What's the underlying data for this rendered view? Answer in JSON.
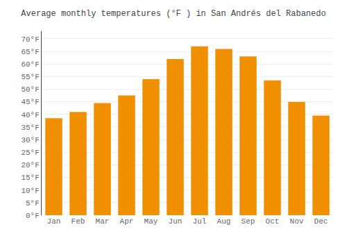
{
  "chart_data": {
    "type": "bar",
    "title": "Average monthly temperatures (°F ) in San Andrés del Rabanedo",
    "categories": [
      "Jan",
      "Feb",
      "Mar",
      "Apr",
      "May",
      "Jun",
      "Jul",
      "Aug",
      "Sep",
      "Oct",
      "Nov",
      "Dec"
    ],
    "values": [
      38.5,
      41.0,
      44.5,
      47.5,
      54.0,
      62.0,
      67.0,
      66.0,
      63.0,
      53.5,
      45.0,
      39.5
    ],
    "color": "#F09000",
    "ylim": [
      0,
      73
    ],
    "yticks": [
      {
        "value": 0,
        "label": "0°F"
      },
      {
        "value": 5,
        "label": "5°F"
      },
      {
        "value": 10,
        "label": "10°F"
      },
      {
        "value": 15,
        "label": "15°F"
      },
      {
        "value": 20,
        "label": "20°F"
      },
      {
        "value": 25,
        "label": "25°F"
      },
      {
        "value": 30,
        "label": "30°F"
      },
      {
        "value": 35,
        "label": "35°F"
      },
      {
        "value": 40,
        "label": "40°F"
      },
      {
        "value": 45,
        "label": "45°F"
      },
      {
        "value": 50,
        "label": "50°F"
      },
      {
        "value": 55,
        "label": "55°F"
      },
      {
        "value": 60,
        "label": "60°F"
      },
      {
        "value": 65,
        "label": "65°F"
      },
      {
        "value": 70,
        "label": "70°F"
      }
    ],
    "grid": true
  }
}
